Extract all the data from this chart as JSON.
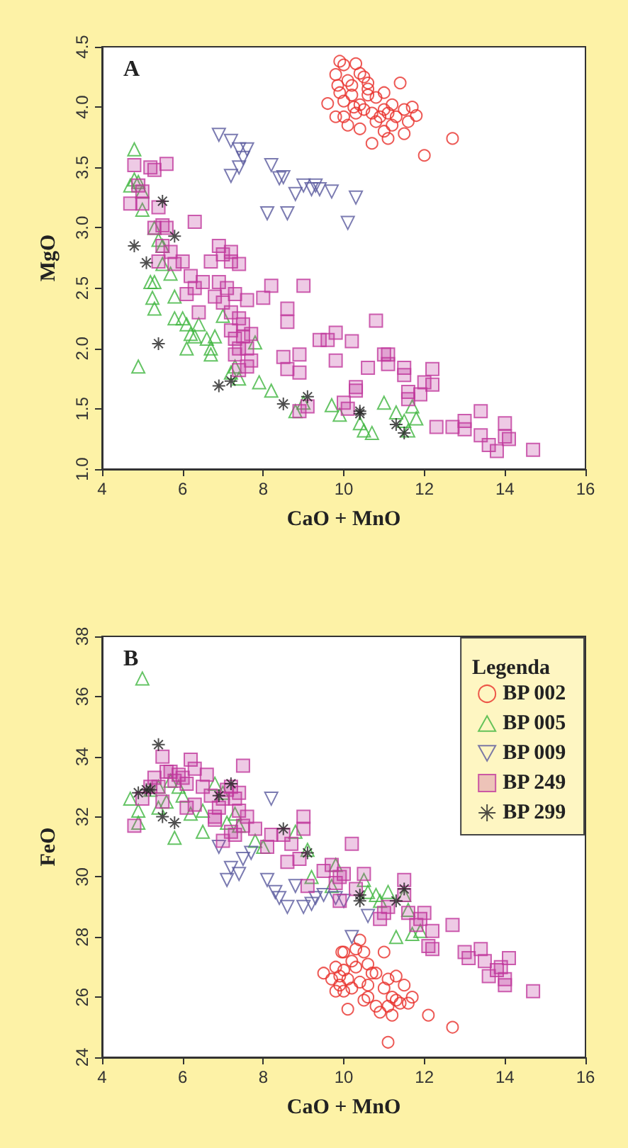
{
  "chart_data": [
    {
      "type": "scatter",
      "title": "A",
      "xlabel": "CaO + MnO",
      "ylabel": "MgO",
      "xlim": [
        4,
        16
      ],
      "xticks": [
        4,
        6,
        8,
        10,
        12,
        14,
        16
      ],
      "ylim": [
        1.0,
        4.5
      ],
      "yticks": [
        {
          "value": 1.0,
          "label": "1.0"
        },
        {
          "value": 1.5,
          "label": "1.5"
        },
        {
          "value": 2.0,
          "label": "2.0"
        },
        {
          "value": 2.5,
          "label": "2.5"
        },
        {
          "value": 3.0,
          "label": "3.0"
        },
        {
          "value": 3.5,
          "label": "3.5"
        },
        {
          "value": 4.0,
          "label": "4.0"
        },
        {
          "value": 4.5,
          "label": "4.5"
        }
      ],
      "grid": false,
      "legend": false,
      "series": [
        {
          "color": "#e8302a",
          "marker": "circle",
          "x": [
            9.9,
            10.0,
            10.3,
            10.4,
            10.5,
            9.8,
            10.1,
            10.2,
            10.6,
            11.4,
            9.6,
            9.9,
            10.0,
            10.2,
            10.4,
            10.6,
            10.8,
            11.0,
            11.2,
            9.8,
            10.0,
            10.3,
            10.5,
            10.7,
            10.9,
            11.1,
            11.3,
            11.5,
            11.7,
            11.8,
            10.1,
            10.4,
            10.8,
            11.0,
            11.2,
            11.6,
            10.7,
            11.1,
            11.5,
            12.0,
            12.7,
            10.6,
            11.0,
            10.25,
            9.85
          ],
          "values": [
            4.38,
            4.35,
            4.36,
            4.28,
            4.25,
            4.27,
            4.22,
            4.18,
            4.2,
            4.2,
            4.03,
            4.12,
            4.05,
            4.1,
            4.02,
            4.1,
            4.08,
            4.12,
            4.02,
            3.92,
            3.92,
            3.95,
            3.98,
            3.95,
            3.92,
            3.95,
            3.92,
            3.98,
            4.0,
            3.93,
            3.85,
            3.82,
            3.88,
            3.8,
            3.85,
            3.88,
            3.7,
            3.74,
            3.78,
            3.6,
            3.74,
            4.15,
            3.98,
            4.0,
            4.18
          ]
        },
        {
          "color": "#3fb53f",
          "marker": "triangle",
          "x": [
            4.8,
            4.7,
            4.8,
            4.9,
            5.0,
            5.0,
            5.3,
            5.4,
            5.5,
            5.2,
            5.3,
            5.25,
            5.3,
            5.5,
            5.7,
            5.8,
            6.0,
            5.8,
            6.1,
            6.2,
            6.1,
            6.4,
            6.6,
            6.7,
            6.7,
            6.3,
            4.9,
            7.3,
            7.2,
            7.4,
            7.8,
            7.9,
            8.2,
            9.0,
            8.8,
            9.7,
            9.9,
            10.4,
            10.5,
            10.7,
            11.0,
            11.3,
            11.5,
            11.6,
            11.8,
            11.7,
            6.8,
            7.0
          ],
          "values": [
            3.65,
            3.35,
            3.4,
            3.38,
            3.3,
            3.15,
            3.0,
            2.9,
            2.85,
            2.55,
            2.55,
            2.42,
            2.33,
            2.7,
            2.62,
            2.43,
            2.25,
            2.25,
            2.2,
            2.12,
            2.0,
            2.2,
            2.08,
            2.0,
            1.95,
            2.1,
            1.85,
            1.85,
            1.8,
            1.75,
            2.05,
            1.72,
            1.65,
            1.55,
            1.48,
            1.53,
            1.45,
            1.38,
            1.32,
            1.3,
            1.55,
            1.47,
            1.4,
            1.32,
            1.42,
            1.52,
            2.1,
            2.27
          ]
        },
        {
          "color": "#5a5a9e",
          "marker": "triangle-down",
          "x": [
            6.9,
            7.2,
            7.4,
            7.6,
            7.5,
            7.4,
            7.2,
            8.2,
            8.5,
            8.4,
            9.0,
            9.2,
            9.4,
            9.7,
            8.8,
            10.3,
            8.1,
            8.6,
            10.1,
            9.3
          ],
          "values": [
            3.77,
            3.72,
            3.65,
            3.65,
            3.58,
            3.5,
            3.43,
            3.52,
            3.42,
            3.41,
            3.35,
            3.32,
            3.32,
            3.3,
            3.28,
            3.25,
            3.12,
            3.12,
            3.04,
            3.35
          ]
        },
        {
          "color": "#c0389c",
          "marker": "square",
          "x": [
            4.8,
            5.3,
            5.2,
            5.6,
            4.9,
            5.0,
            4.7,
            5.0,
            5.4,
            5.3,
            5.5,
            5.6,
            6.3,
            5.5,
            5.7,
            5.4,
            5.8,
            6.0,
            6.2,
            6.3,
            6.1,
            6.5,
            6.7,
            6.9,
            7.0,
            7.2,
            7.2,
            7.4,
            6.9,
            7.1,
            7.3,
            7.6,
            7.0,
            7.2,
            7.4,
            7.5,
            7.2,
            7.3,
            7.4,
            7.6,
            7.7,
            7.6,
            7.3,
            7.5,
            7.7,
            6.4,
            6.8,
            8.0,
            8.2,
            8.6,
            8.6,
            9.0,
            8.5,
            8.6,
            8.9,
            8.9,
            9.4,
            9.6,
            9.8,
            9.8,
            10.2,
            10.3,
            10.3,
            10.0,
            10.1,
            10.8,
            10.6,
            11.0,
            11.1,
            11.1,
            11.5,
            11.5,
            11.6,
            11.6,
            11.9,
            12.0,
            12.2,
            12.2,
            12.3,
            12.7,
            13.0,
            13.0,
            13.4,
            13.4,
            13.6,
            13.8,
            14.0,
            14.0,
            14.1,
            14.7,
            8.9,
            9.1,
            7.4
          ],
          "values": [
            3.52,
            3.48,
            3.5,
            3.53,
            3.35,
            3.3,
            3.2,
            3.2,
            3.17,
            3.0,
            3.02,
            3.0,
            3.05,
            2.85,
            2.8,
            2.72,
            2.7,
            2.72,
            2.6,
            2.5,
            2.45,
            2.55,
            2.72,
            2.85,
            2.78,
            2.8,
            2.72,
            2.7,
            2.55,
            2.5,
            2.45,
            2.4,
            2.38,
            2.3,
            2.25,
            2.2,
            2.15,
            2.08,
            2.0,
            2.0,
            1.9,
            1.85,
            1.95,
            2.1,
            2.12,
            2.3,
            2.43,
            2.42,
            2.52,
            2.33,
            2.22,
            2.52,
            1.93,
            1.83,
            1.95,
            1.8,
            2.07,
            2.07,
            2.13,
            1.9,
            2.06,
            1.65,
            1.68,
            1.55,
            1.5,
            2.23,
            1.84,
            1.95,
            1.95,
            1.87,
            1.84,
            1.78,
            1.64,
            1.58,
            1.62,
            1.72,
            1.7,
            1.83,
            1.35,
            1.35,
            1.4,
            1.33,
            1.48,
            1.28,
            1.2,
            1.15,
            1.38,
            1.27,
            1.25,
            1.16,
            1.48,
            1.52,
            1.82
          ]
        },
        {
          "color": "#222222",
          "marker": "cross",
          "x": [
            5.5,
            5.8,
            4.8,
            5.1,
            5.4,
            6.9,
            7.2,
            8.5,
            9.1,
            10.4,
            10.4,
            11.3,
            11.5
          ],
          "values": [
            3.22,
            2.93,
            2.85,
            2.71,
            2.04,
            1.69,
            1.73,
            1.54,
            1.6,
            1.48,
            1.46,
            1.37,
            1.3
          ]
        }
      ]
    },
    {
      "type": "scatter",
      "title": "B",
      "xlabel": "CaO + MnO",
      "ylabel": "FeO",
      "legend_title": "Legenda",
      "xlim": [
        4,
        16
      ],
      "xticks": [
        4,
        6,
        8,
        10,
        12,
        14,
        16
      ],
      "ylim": [
        24,
        38
      ],
      "yticks": [
        24,
        26,
        28,
        30,
        32,
        34,
        36,
        38
      ],
      "grid": false,
      "legend": "top right",
      "series": [
        {
          "name": "BP 002",
          "color": "#e8302a",
          "marker": "circle",
          "x": [
            9.5,
            9.7,
            9.8,
            9.9,
            9.95,
            10.0,
            10.0,
            10.1,
            10.2,
            10.3,
            10.4,
            10.5,
            10.3,
            10.6,
            10.6,
            9.8,
            9.9,
            10.0,
            10.2,
            10.4,
            10.6,
            10.7,
            10.8,
            11.0,
            11.1,
            11.2,
            11.3,
            11.5,
            11.6,
            11.7,
            10.8,
            10.9,
            11.1,
            11.2,
            11.4,
            10.1,
            12.1,
            12.7,
            11.1,
            11.3,
            10.5,
            11.0
          ],
          "values": [
            26.8,
            26.6,
            27.0,
            26.7,
            27.5,
            27.5,
            26.9,
            26.6,
            27.2,
            27.0,
            27.9,
            27.5,
            27.6,
            27.1,
            26.4,
            26.2,
            26.4,
            26.2,
            26.3,
            26.5,
            26.0,
            26.8,
            26.8,
            26.3,
            26.6,
            26.0,
            26.7,
            26.4,
            25.8,
            26.0,
            25.7,
            25.5,
            25.7,
            25.4,
            25.8,
            25.6,
            25.4,
            25.0,
            24.5,
            25.9,
            25.9,
            27.5
          ]
        },
        {
          "name": "BP 005",
          "color": "#3fb53f",
          "marker": "triangle",
          "x": [
            5.0,
            4.7,
            4.9,
            4.9,
            5.2,
            5.4,
            5.4,
            5.6,
            5.7,
            5.9,
            6.0,
            6.2,
            6.5,
            5.8,
            6.8,
            7.0,
            7.3,
            7.1,
            6.5,
            7.4,
            7.8,
            8.0,
            9.1,
            9.2,
            9.8,
            9.7,
            10.5,
            10.6,
            10.8,
            10.9,
            11.1,
            11.5,
            11.6,
            11.3,
            11.7,
            11.9,
            8.8
          ],
          "values": [
            36.6,
            32.6,
            32.2,
            31.8,
            32.9,
            33.0,
            32.3,
            32.5,
            33.2,
            33.0,
            32.7,
            32.1,
            32.2,
            31.3,
            33.1,
            32.8,
            32.1,
            31.8,
            31.5,
            31.7,
            31.2,
            31.0,
            30.9,
            30.0,
            30.4,
            29.7,
            29.9,
            29.5,
            29.4,
            29.2,
            29.5,
            29.4,
            28.9,
            28.0,
            28.1,
            28.2,
            31.5
          ]
        },
        {
          "name": "BP 009",
          "color": "#5a5a9e",
          "marker": "triangle-down",
          "x": [
            6.9,
            7.2,
            7.1,
            7.4,
            7.5,
            7.7,
            8.2,
            8.1,
            8.3,
            8.4,
            8.6,
            8.8,
            9.0,
            9.2,
            9.5,
            9.8,
            10.0,
            10.6,
            10.2,
            9.3
          ],
          "values": [
            31.0,
            30.3,
            29.9,
            30.1,
            30.6,
            30.8,
            32.6,
            29.9,
            29.5,
            29.3,
            29.0,
            29.7,
            29.0,
            29.1,
            29.4,
            29.3,
            29.2,
            28.7,
            28.0,
            29.3
          ]
        },
        {
          "name": "BP 249",
          "color": "#c0389c",
          "marker": "square",
          "x": [
            4.8,
            5.0,
            5.2,
            5.3,
            5.4,
            5.5,
            5.6,
            5.7,
            5.8,
            5.9,
            6.0,
            6.1,
            6.2,
            6.3,
            6.1,
            6.3,
            6.5,
            6.7,
            6.6,
            5.5,
            6.8,
            6.9,
            6.8,
            7.0,
            7.1,
            7.2,
            7.3,
            7.4,
            7.5,
            7.4,
            7.5,
            7.6,
            7.2,
            7.0,
            7.3,
            7.8,
            8.1,
            8.2,
            8.5,
            8.7,
            8.9,
            8.6,
            9.0,
            9.0,
            9.1,
            9.5,
            9.7,
            9.9,
            10.0,
            10.2,
            10.3,
            10.5,
            9.8,
            9.9,
            10.9,
            11.0,
            11.1,
            11.5,
            11.5,
            11.6,
            11.8,
            11.9,
            12.0,
            12.1,
            12.2,
            12.2,
            12.7,
            13.0,
            13.1,
            13.4,
            13.5,
            13.6,
            13.8,
            13.9,
            14.0,
            14.1,
            14.0,
            14.7
          ],
          "values": [
            31.7,
            32.6,
            33.0,
            33.3,
            33.0,
            32.5,
            33.5,
            33.5,
            33.2,
            33.4,
            33.3,
            33.1,
            33.9,
            33.6,
            32.3,
            32.4,
            33.0,
            32.7,
            33.4,
            34.0,
            32.0,
            32.3,
            31.9,
            32.6,
            32.9,
            33.0,
            32.6,
            32.8,
            33.7,
            32.2,
            31.7,
            32.0,
            31.5,
            31.2,
            31.4,
            31.6,
            31.0,
            31.4,
            31.4,
            31.1,
            30.6,
            30.5,
            32.0,
            31.6,
            29.7,
            30.2,
            30.4,
            30.0,
            30.1,
            31.1,
            29.6,
            30.1,
            29.8,
            29.2,
            28.6,
            28.8,
            29.0,
            29.9,
            29.4,
            28.8,
            28.4,
            28.6,
            28.8,
            27.7,
            28.2,
            27.6,
            28.4,
            27.5,
            27.3,
            27.6,
            27.2,
            26.7,
            26.9,
            27.0,
            26.4,
            27.3,
            26.6,
            26.2
          ]
        },
        {
          "name": "BP 299",
          "color": "#222222",
          "marker": "cross",
          "x": [
            4.9,
            5.1,
            5.2,
            5.4,
            5.5,
            5.8,
            6.9,
            7.2,
            8.5,
            9.1,
            10.4,
            10.4,
            11.3,
            11.5
          ],
          "values": [
            32.8,
            32.9,
            32.9,
            34.4,
            32.0,
            31.8,
            32.7,
            33.1,
            31.6,
            30.8,
            29.4,
            29.2,
            29.2,
            29.6
          ]
        }
      ]
    }
  ]
}
